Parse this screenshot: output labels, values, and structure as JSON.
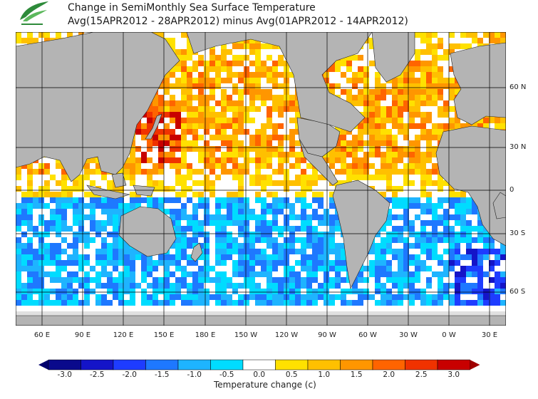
{
  "title": {
    "line1": "Change in SemiMonthly Sea Surface Temperature",
    "line2": "Avg(15APR2012 - 28APR2012) minus Avg(01APR2012 - 14APR2012)"
  },
  "lat_labels": [
    "60 N",
    "30 N",
    "0",
    "30 S",
    "60 S"
  ],
  "lon_labels": [
    "60 E",
    "90 E",
    "120 E",
    "150 E",
    "180 E",
    "150 W",
    "120 W",
    "90 W",
    "60 W",
    "30 W",
    "0 W",
    "30 E"
  ],
  "colorbar": {
    "title": "Temperature change  (c)",
    "ticks": [
      "-3.0",
      "-2.5",
      "-2.0",
      "-1.5",
      "-1.0",
      "-0.5",
      "0.0",
      "0.5",
      "1.0",
      "1.5",
      "2.0",
      "2.5",
      "3.0"
    ],
    "colors": [
      "#0a0a8c",
      "#1414c8",
      "#1e3cff",
      "#1e78ff",
      "#1eb4ff",
      "#00dcff",
      "#ffffff",
      "#ffe100",
      "#ffc000",
      "#ff9600",
      "#ff6400",
      "#f03200",
      "#c80000"
    ],
    "low_color": "#00006e",
    "high_color": "#a00000"
  },
  "colors": {
    "land": "#b4b4b4",
    "ice": "#e0e0e0",
    "grid": "#000000"
  }
}
